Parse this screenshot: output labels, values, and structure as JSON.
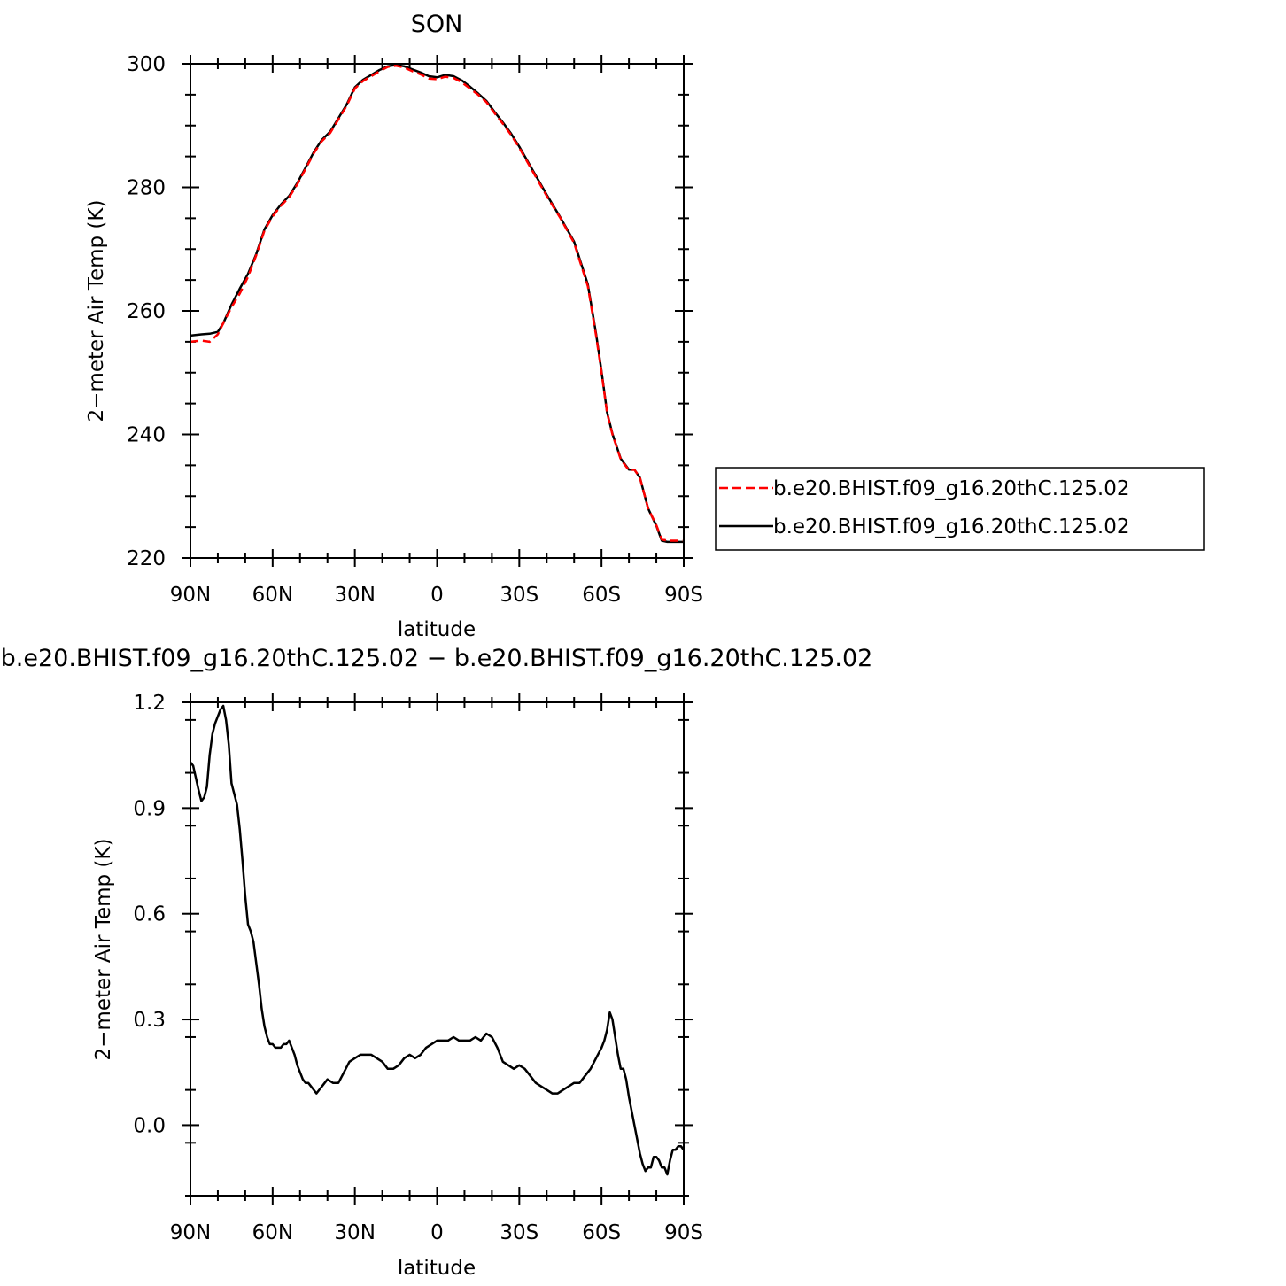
{
  "chart_data": [
    {
      "type": "line",
      "title": "SON",
      "xlabel": "latitude",
      "ylabel": "2−meter Air Temp (K)",
      "xlim": [
        90,
        -90
      ],
      "ylim": [
        220,
        300
      ],
      "x_ticks": [
        {
          "value": 90,
          "label": "90N"
        },
        {
          "value": 60,
          "label": "60N"
        },
        {
          "value": 30,
          "label": "30N"
        },
        {
          "value": 0,
          "label": "0"
        },
        {
          "value": -30,
          "label": "30S"
        },
        {
          "value": -60,
          "label": "60S"
        },
        {
          "value": -90,
          "label": "90S"
        }
      ],
      "y_ticks": [
        {
          "value": 300,
          "label": "300"
        },
        {
          "value": 280,
          "label": "280"
        },
        {
          "value": 260,
          "label": "260"
        },
        {
          "value": 240,
          "label": "240"
        },
        {
          "value": 220,
          "label": "220"
        }
      ],
      "legend_position": "right",
      "series": [
        {
          "name": "b.e20.BHIST.f09_g16.20thC.125.02",
          "color": "#ff0000",
          "style": "dashed",
          "x": [
            90,
            86,
            83,
            80,
            78,
            75,
            72,
            69,
            66,
            63,
            60,
            57,
            54,
            51,
            48,
            45,
            42,
            39,
            36,
            33,
            30,
            27,
            24,
            21,
            18,
            15,
            12,
            9,
            6,
            3,
            0,
            -3,
            -6,
            -9,
            -12,
            -15,
            -18,
            -21,
            -24,
            -27,
            -30,
            -35,
            -40,
            -45,
            -50,
            -55,
            -58,
            -60,
            -62,
            -64,
            -67,
            -70,
            -72,
            -74,
            -77,
            -80,
            -82,
            -84,
            -86,
            -88,
            -90
          ],
          "y": [
            255.0,
            255.2,
            255.0,
            256.2,
            258.0,
            260.6,
            262.8,
            265.5,
            269.0,
            273.0,
            275.3,
            277.0,
            278.4,
            280.5,
            283.0,
            285.5,
            287.5,
            288.8,
            291.0,
            293.2,
            296.0,
            297.2,
            298.0,
            298.8,
            299.5,
            299.7,
            299.4,
            298.8,
            298.3,
            297.6,
            297.5,
            297.9,
            297.7,
            297.0,
            296.0,
            295.0,
            293.8,
            292.0,
            290.3,
            288.5,
            286.4,
            282.5,
            278.6,
            275.0,
            271.0,
            264.0,
            256.0,
            250.0,
            243.5,
            240.0,
            236.0,
            234.2,
            234.3,
            233.0,
            228.0,
            225.3,
            223.0,
            222.8,
            222.8,
            222.8,
            222.8
          ]
        },
        {
          "name": "b.e20.BHIST.f09_g16.20thC.125.02",
          "color": "#000000",
          "style": "solid",
          "x": [
            90,
            86,
            83,
            80,
            78,
            75,
            72,
            69,
            66,
            63,
            60,
            57,
            54,
            51,
            48,
            45,
            42,
            39,
            36,
            33,
            30,
            27,
            24,
            21,
            18,
            15,
            12,
            9,
            6,
            3,
            0,
            -3,
            -6,
            -9,
            -12,
            -15,
            -18,
            -21,
            -24,
            -27,
            -30,
            -35,
            -40,
            -45,
            -50,
            -55,
            -58,
            -60,
            -62,
            -64,
            -67,
            -70,
            -72,
            -74,
            -77,
            -80,
            -82,
            -84,
            -86,
            -88,
            -90
          ],
          "y": [
            256.0,
            256.2,
            256.3,
            256.6,
            258.0,
            261.0,
            263.6,
            266.0,
            269.2,
            273.2,
            275.5,
            277.2,
            278.6,
            280.7,
            283.2,
            285.7,
            287.7,
            289.0,
            291.2,
            293.4,
            296.2,
            297.4,
            298.2,
            299.0,
            299.6,
            299.8,
            299.6,
            299.1,
            298.6,
            298.0,
            297.8,
            298.2,
            298.0,
            297.3,
            296.3,
            295.2,
            294.0,
            292.2,
            290.5,
            288.7,
            286.6,
            282.7,
            278.8,
            275.1,
            271.2,
            264.3,
            256.3,
            250.2,
            243.6,
            240.1,
            236.1,
            234.3,
            234.3,
            233.0,
            228.0,
            225.2,
            222.8,
            222.6,
            222.6,
            222.6,
            222.6
          ]
        }
      ]
    },
    {
      "type": "line",
      "title": "b.e20.BHIST.f09_g16.20thC.125.02 − b.e20.BHIST.f09_g16.20thC.125.02",
      "xlabel": "latitude",
      "ylabel": "2−meter Air Temp (K)",
      "xlim": [
        90,
        -90
      ],
      "ylim": [
        -0.2,
        1.2
      ],
      "x_ticks": [
        {
          "value": 90,
          "label": "90N"
        },
        {
          "value": 60,
          "label": "60N"
        },
        {
          "value": 30,
          "label": "30N"
        },
        {
          "value": 0,
          "label": "0"
        },
        {
          "value": -30,
          "label": "30S"
        },
        {
          "value": -60,
          "label": "60S"
        },
        {
          "value": -90,
          "label": "90S"
        }
      ],
      "y_ticks": [
        {
          "value": 1.2,
          "label": "1.2"
        },
        {
          "value": 0.9,
          "label": "0.9"
        },
        {
          "value": 0.6,
          "label": "0.6"
        },
        {
          "value": 0.3,
          "label": "0.3"
        },
        {
          "value": 0.0,
          "label": "0.0"
        }
      ],
      "series": [
        {
          "color": "#000000",
          "style": "solid",
          "x": [
            90,
            89,
            87,
            86,
            85,
            84,
            83,
            82,
            81,
            80,
            79,
            78,
            77,
            76,
            75,
            74,
            73,
            72,
            71,
            70,
            69,
            68,
            67,
            66,
            65,
            64,
            63,
            62,
            61,
            60,
            59,
            58,
            57,
            56,
            55,
            54,
            53,
            52,
            51,
            50,
            49,
            48,
            47,
            46,
            45,
            44,
            43,
            42,
            40,
            38,
            36,
            34,
            32,
            30,
            28,
            26,
            24,
            22,
            20,
            18,
            16,
            14,
            12,
            10,
            8,
            6,
            4,
            2,
            0,
            -2,
            -4,
            -6,
            -8,
            -10,
            -12,
            -14,
            -16,
            -18,
            -20,
            -22,
            -24,
            -26,
            -28,
            -30,
            -32,
            -34,
            -36,
            -38,
            -40,
            -42,
            -44,
            -46,
            -48,
            -50,
            -52,
            -54,
            -56,
            -58,
            -60,
            -61,
            -62,
            -63,
            -64,
            -65,
            -66,
            -67,
            -68,
            -69,
            -70,
            -71,
            -72,
            -73,
            -74,
            -75,
            -76,
            -77,
            -78,
            -79,
            -80,
            -81,
            -82,
            -83,
            -84,
            -85,
            -86,
            -87,
            -88,
            -89,
            -90
          ],
          "y": [
            1.03,
            1.02,
            0.95,
            0.92,
            0.93,
            0.96,
            1.05,
            1.11,
            1.14,
            1.16,
            1.18,
            1.19,
            1.15,
            1.08,
            0.97,
            0.94,
            0.91,
            0.84,
            0.75,
            0.65,
            0.57,
            0.55,
            0.52,
            0.46,
            0.4,
            0.33,
            0.28,
            0.25,
            0.23,
            0.23,
            0.22,
            0.22,
            0.22,
            0.23,
            0.23,
            0.24,
            0.22,
            0.2,
            0.17,
            0.15,
            0.13,
            0.12,
            0.12,
            0.11,
            0.1,
            0.09,
            0.1,
            0.11,
            0.13,
            0.12,
            0.12,
            0.15,
            0.18,
            0.19,
            0.2,
            0.2,
            0.2,
            0.19,
            0.18,
            0.16,
            0.16,
            0.17,
            0.19,
            0.2,
            0.19,
            0.2,
            0.22,
            0.23,
            0.24,
            0.24,
            0.24,
            0.25,
            0.24,
            0.24,
            0.24,
            0.25,
            0.24,
            0.26,
            0.25,
            0.22,
            0.18,
            0.17,
            0.16,
            0.17,
            0.16,
            0.14,
            0.12,
            0.11,
            0.1,
            0.09,
            0.09,
            0.1,
            0.11,
            0.12,
            0.12,
            0.14,
            0.16,
            0.19,
            0.22,
            0.24,
            0.27,
            0.32,
            0.3,
            0.25,
            0.2,
            0.16,
            0.16,
            0.13,
            0.08,
            0.04,
            0.0,
            -0.04,
            -0.08,
            -0.11,
            -0.13,
            -0.12,
            -0.12,
            -0.09,
            -0.09,
            -0.1,
            -0.12,
            -0.12,
            -0.14,
            -0.1,
            -0.07,
            -0.07,
            -0.06,
            -0.06,
            -0.07
          ]
        }
      ]
    }
  ],
  "legend": {
    "items": [
      {
        "label": "b.e20.BHIST.f09_g16.20thC.125.02",
        "color": "#ff0000",
        "style": "dashed"
      },
      {
        "label": "b.e20.BHIST.f09_g16.20thC.125.02",
        "color": "#000000",
        "style": "solid"
      }
    ]
  }
}
